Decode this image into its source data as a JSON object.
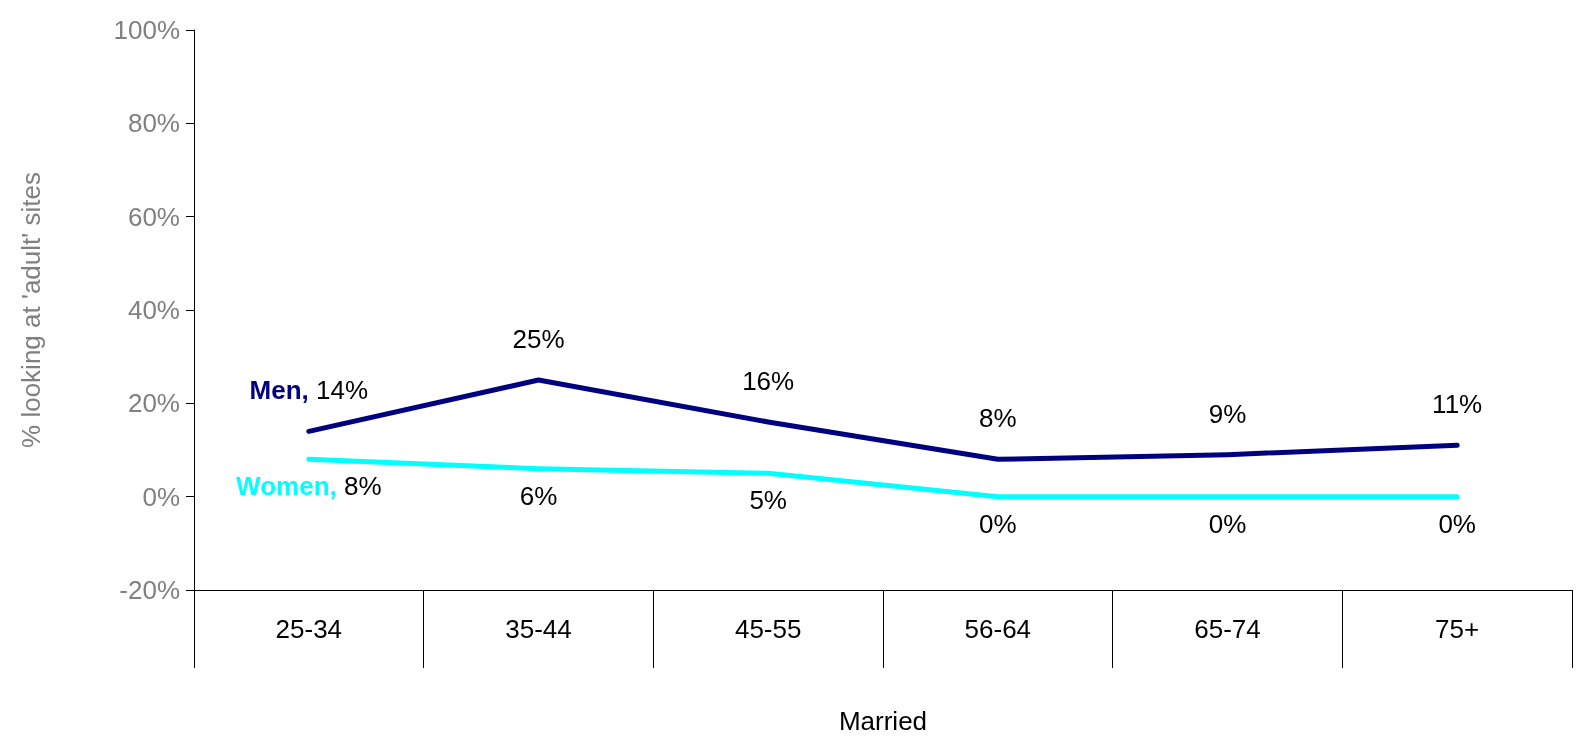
{
  "chart_data": {
    "type": "line",
    "categories": [
      "25-34",
      "35-44",
      "45-55",
      "56-64",
      "65-74",
      "75+"
    ],
    "series": [
      {
        "name": "Men,",
        "color": "#000080",
        "values": [
          14,
          25,
          16,
          8,
          9,
          11
        ],
        "value_labels": [
          "14%",
          "25%",
          "16%",
          "8%",
          "9%",
          "11%"
        ]
      },
      {
        "name": "Women,",
        "color": "#00ffff",
        "values": [
          8,
          6,
          5,
          0,
          0,
          0
        ],
        "value_labels": [
          "8%",
          "6%",
          "5%",
          "0%",
          "0%",
          "0%"
        ]
      }
    ],
    "xlabel": "Married",
    "ylabel": "% looking at 'adult' sites",
    "ylim": [
      -20,
      100
    ],
    "yticks": [
      {
        "value": -20,
        "label": "-20%"
      },
      {
        "value": 0,
        "label": "0%"
      },
      {
        "value": 20,
        "label": "20%"
      },
      {
        "value": 40,
        "label": "40%"
      },
      {
        "value": 60,
        "label": "60%"
      },
      {
        "value": 80,
        "label": "80%"
      },
      {
        "value": 100,
        "label": "100%"
      }
    ],
    "grid": false,
    "legend": false,
    "marker": "none",
    "line_style": "solid"
  }
}
